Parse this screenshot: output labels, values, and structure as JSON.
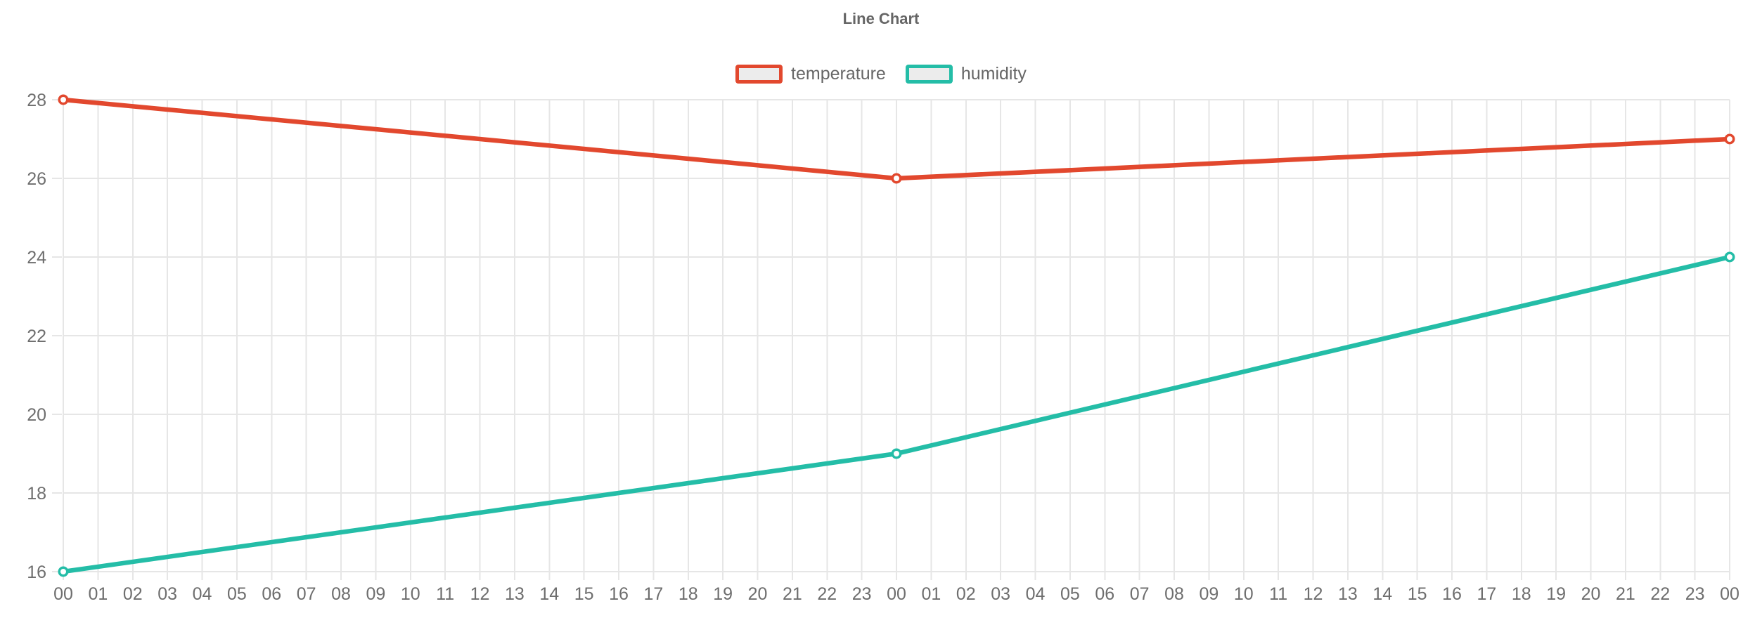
{
  "chart_data": {
    "type": "line",
    "title": "Line Chart",
    "x_categories": [
      "00",
      "01",
      "02",
      "03",
      "04",
      "05",
      "06",
      "07",
      "08",
      "09",
      "10",
      "11",
      "12",
      "13",
      "14",
      "15",
      "16",
      "17",
      "18",
      "19",
      "20",
      "21",
      "22",
      "23",
      "00",
      "01",
      "02",
      "03",
      "04",
      "05",
      "06",
      "07",
      "08",
      "09",
      "10",
      "11",
      "12",
      "13",
      "14",
      "15",
      "16",
      "17",
      "18",
      "19",
      "20",
      "21",
      "22",
      "23",
      "00"
    ],
    "y_ticks": [
      16,
      18,
      20,
      22,
      24,
      26,
      28
    ],
    "ylim": [
      16,
      28
    ],
    "grid": true,
    "legend_position": "top",
    "series": [
      {
        "name": "temperature",
        "color": "#e2482e",
        "points": [
          {
            "x_index": 0,
            "x_label": "00",
            "value": 28
          },
          {
            "x_index": 24,
            "x_label": "00",
            "value": 26
          },
          {
            "x_index": 48,
            "x_label": "00",
            "value": 27
          }
        ]
      },
      {
        "name": "humidity",
        "color": "#24bda7",
        "points": [
          {
            "x_index": 0,
            "x_label": "00",
            "value": 16
          },
          {
            "x_index": 24,
            "x_label": "00",
            "value": 19
          },
          {
            "x_index": 48,
            "x_label": "00",
            "value": 24
          }
        ]
      }
    ],
    "colors": {
      "background": "#ffffff",
      "grid": "#e6e6e6",
      "tick_label": "#6e6e6e",
      "title_text": "#666666",
      "legend_text": "#666666",
      "legend_box_fill": "#ececec",
      "marker_fill": "#ffffff"
    }
  }
}
